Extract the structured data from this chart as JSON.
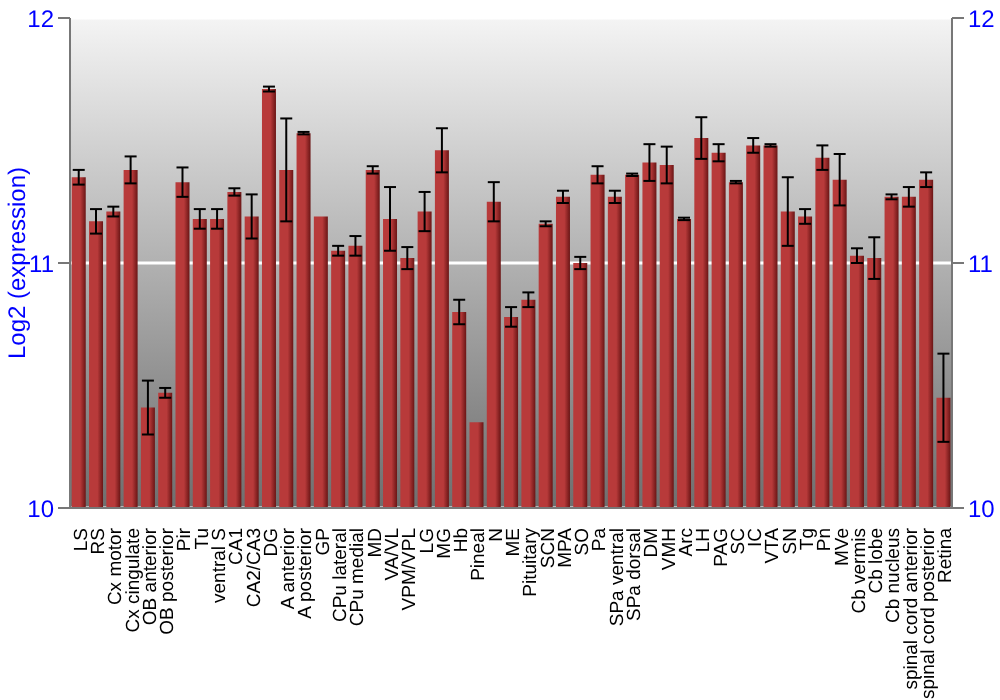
{
  "chart_data": {
    "type": "bar",
    "ylabel": "Log2 (expression)",
    "color": "#b83a3a",
    "categories": [
      "LS",
      "RS",
      "Cx motor",
      "Cx cingulate",
      "OB anterior",
      "OB posterior",
      "Pir",
      "Tu",
      "ventral S",
      "CA1",
      "CA2/CA3",
      "DG",
      "A anterior",
      "A posterior",
      "GP",
      "CPu lateral",
      "CPu medial",
      "MD",
      "VA/VL",
      "VPM/VPL",
      "LG",
      "MG",
      "Hb",
      "Pineal",
      "N",
      "ME",
      "Pituitary",
      "SCN",
      "MPA",
      "SO",
      "Pa",
      "SPa ventral",
      "SPa dorsal",
      "DM",
      "VMH",
      "Arc",
      "LH",
      "PAG",
      "SC",
      "IC",
      "VTA",
      "SN",
      "Tg",
      "Pn",
      "MVe",
      "Cb vermis",
      "Cb lobe",
      "Cb nucleus",
      "spinal cord anterior",
      "spinal cord posterior",
      "Retina"
    ],
    "values": [
      11.35,
      11.17,
      11.21,
      11.38,
      10.41,
      10.47,
      11.33,
      11.18,
      11.18,
      11.29,
      11.19,
      11.71,
      11.38,
      11.53,
      11.19,
      11.05,
      11.07,
      11.38,
      11.18,
      11.02,
      11.21,
      11.46,
      10.8,
      10.35,
      11.25,
      10.78,
      10.85,
      11.16,
      11.27,
      11.0,
      11.36,
      11.27,
      11.36,
      11.41,
      11.4,
      11.18,
      11.51,
      11.45,
      11.33,
      11.48,
      11.48,
      11.21,
      11.19,
      11.43,
      11.34,
      11.03,
      11.02,
      11.27,
      11.27,
      11.34,
      10.45
    ],
    "errors": [
      0.03,
      0.05,
      0.02,
      0.055,
      0.11,
      0.02,
      0.06,
      0.04,
      0.04,
      0.015,
      0.09,
      0.01,
      0.21,
      0.005,
      null,
      0.02,
      0.04,
      0.015,
      0.13,
      0.045,
      0.08,
      0.09,
      0.05,
      null,
      0.08,
      0.04,
      0.03,
      0.01,
      0.025,
      0.025,
      0.035,
      0.025,
      0.005,
      0.075,
      0.075,
      0.005,
      0.085,
      0.035,
      0.005,
      0.03,
      0.005,
      0.14,
      0.03,
      0.05,
      0.105,
      0.03,
      0.085,
      0.01,
      0.04,
      0.03,
      0.18
    ],
    "ylim": [
      10,
      12
    ],
    "yticks": [
      10,
      11,
      12
    ],
    "y2lim": [
      10,
      12
    ],
    "y2ticks": [
      10,
      11,
      12
    ],
    "grid": "y"
  }
}
